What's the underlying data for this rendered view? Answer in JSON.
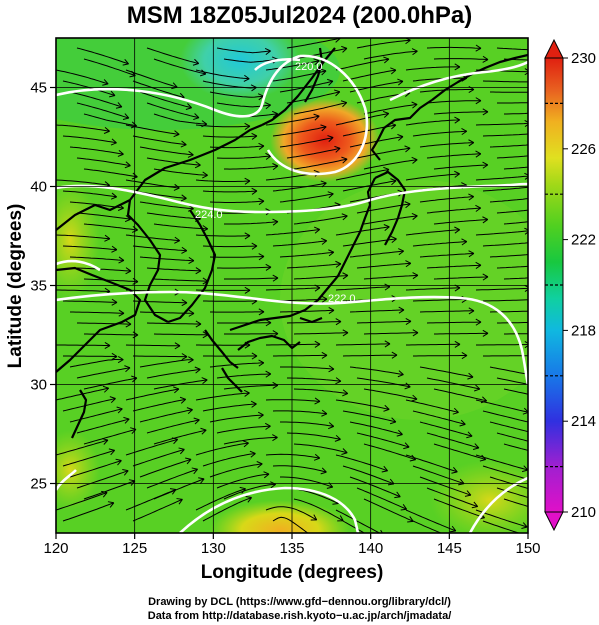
{
  "title": "MSM 18Z05Jul2024 (200.0hPa)",
  "map": {
    "x_axis": {
      "label": "Longitude (degrees)",
      "range": [
        120,
        150
      ],
      "ticks": [
        120,
        125,
        130,
        135,
        140,
        145,
        150
      ]
    },
    "y_axis": {
      "label": "Latitude  (degrees)",
      "range": [
        22.5,
        47.5
      ],
      "ticks": [
        25,
        30,
        35,
        40,
        45
      ]
    },
    "grid": true,
    "colorbar": {
      "range": [
        210,
        230
      ],
      "ticks": [
        210,
        214,
        218,
        222,
        226,
        230
      ],
      "colors": [
        "#e010c8",
        "#7a1fd8",
        "#1f33e6",
        "#1f8ae6",
        "#10c8d8",
        "#10d08a",
        "#18c838",
        "#58d020",
        "#a8d818",
        "#e8e020",
        "#f0a020",
        "#e85020",
        "#e02010"
      ]
    },
    "contour_labels": [
      "224.0",
      "222.0",
      "220.0"
    ],
    "field_type": "temperature shading with streamlines"
  },
  "footer": {
    "line1": "Drawing by DCL (https://www.gfd−dennou.org/library/dcl/)",
    "line2": "Data from http://database.rish.kyoto−u.ac.jp/arch/jmadata/"
  }
}
